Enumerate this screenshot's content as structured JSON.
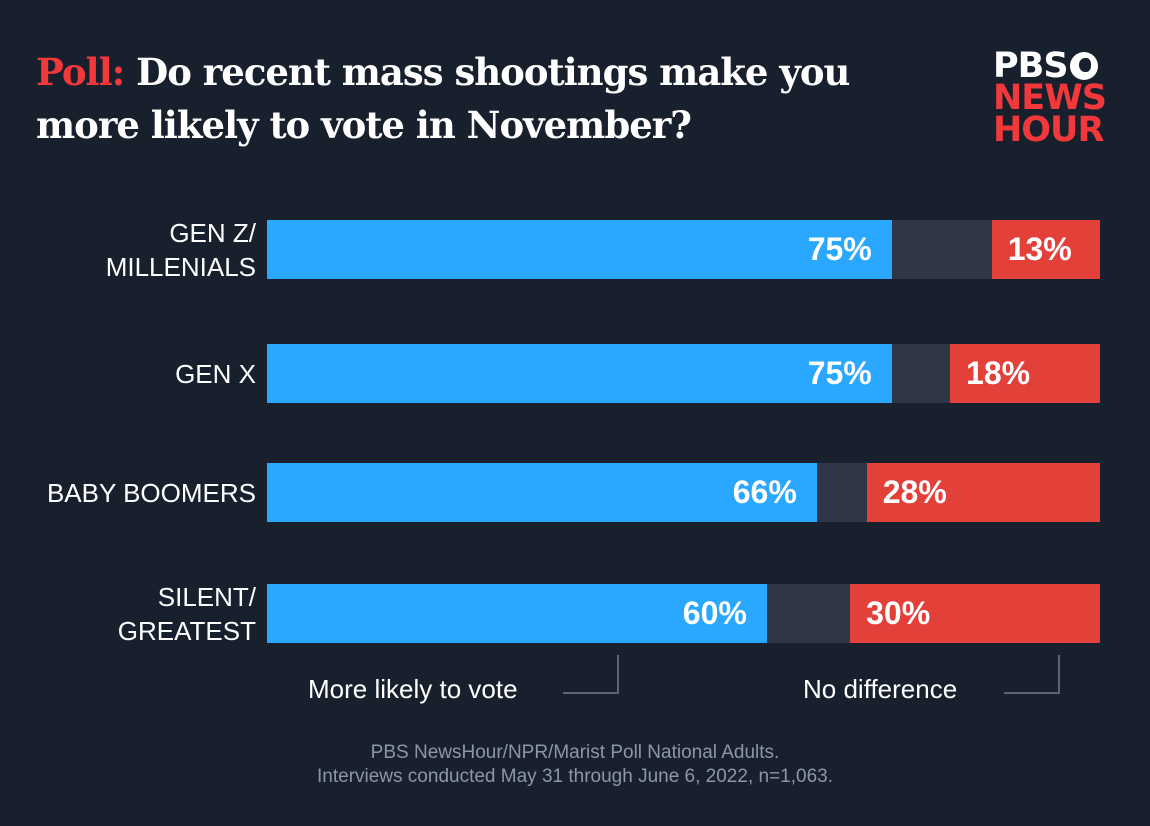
{
  "title": {
    "highlight": "Poll:",
    "text": " Do recent mass shootings make you more likely to vote in November?"
  },
  "logo": {
    "line1": "PBS",
    "line2": "NEWS",
    "line3": "HOUR"
  },
  "colors": {
    "background": "#18202e",
    "more_likely": "#2aa7ff",
    "middle": "#2f3645",
    "no_difference": "#e3403a",
    "accent": "#f2383a"
  },
  "chart_data": {
    "type": "bar",
    "orientation": "horizontal-stacked",
    "xlim": [
      0,
      100
    ],
    "categories": [
      "GEN Z/\nMILLENIALS",
      "GEN X",
      "BABY BOOMERS",
      "SILENT/\nGREATEST"
    ],
    "series": [
      {
        "name": "More likely to vote",
        "values": [
          75,
          75,
          66,
          60
        ],
        "labels": [
          "75%",
          "75%",
          "66%",
          "60%"
        ]
      },
      {
        "values": [
          12,
          7,
          6,
          10
        ]
      },
      {
        "name": "No difference",
        "values": [
          13,
          18,
          28,
          30
        ],
        "labels": [
          "13%",
          "18%",
          "28%",
          "30%"
        ]
      }
    ]
  },
  "annotations": {
    "more_likely": "More likely to vote",
    "no_difference": "No difference"
  },
  "source": {
    "line1": "PBS NewsHour/NPR/Marist Poll National Adults.",
    "line2": "Interviews conducted May 31 through June 6, 2022, n=1,063."
  }
}
